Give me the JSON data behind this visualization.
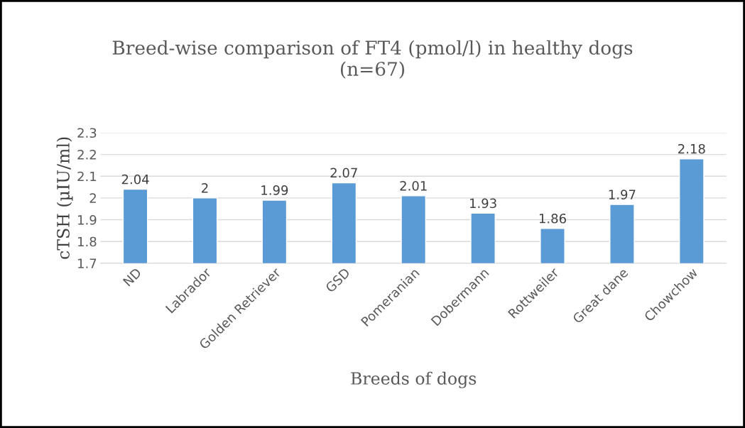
{
  "chart_data": {
    "type": "bar",
    "title": "Breed-wise comparison of FT4 (pmol/l) in healthy dogs\n(n=67)",
    "xlabel": "Breeds of dogs",
    "ylabel": "cTSH (µIU/ml)",
    "categories": [
      "ND",
      "Labrador",
      "Golden Retriever",
      "GSD",
      "Pomeranian",
      "Dobermann",
      "Rottweiler",
      "Great dane",
      "Chowchow"
    ],
    "values": [
      2.04,
      2,
      1.99,
      2.07,
      2.01,
      1.93,
      1.86,
      1.97,
      2.18
    ],
    "color": "#5b9bd5",
    "ylim": [
      1.7,
      2.3
    ],
    "yticks": [
      1.7,
      1.8,
      1.9,
      2,
      2.1,
      2.2,
      2.3
    ],
    "grid": "y",
    "data_labels": true
  }
}
